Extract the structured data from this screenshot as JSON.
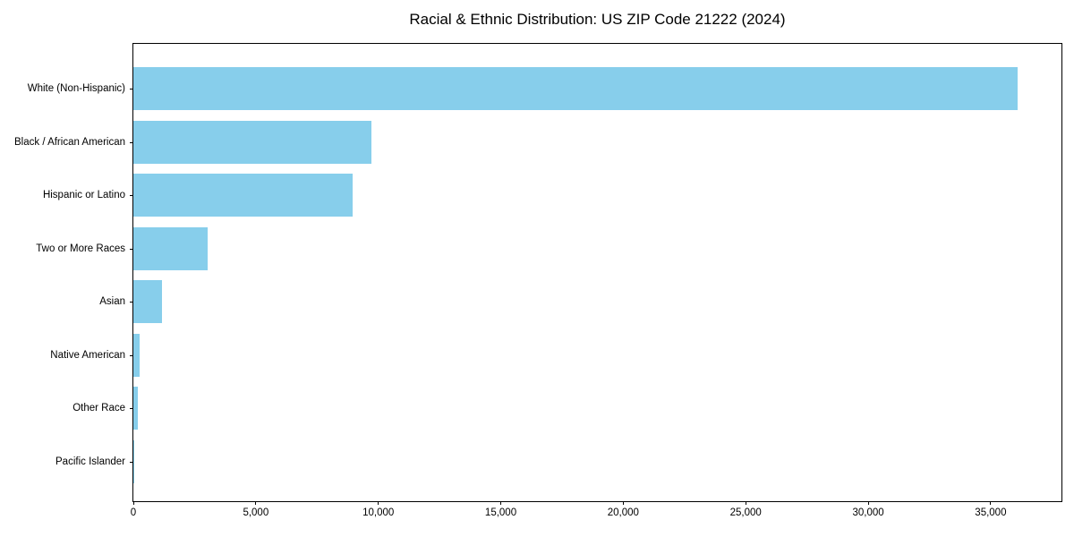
{
  "chart_data": {
    "type": "bar",
    "orientation": "horizontal",
    "title": "Racial & Ethnic Distribution: US ZIP Code 21222 (2024)",
    "categories": [
      "White (Non-Hispanic)",
      "Black / African American",
      "Hispanic or Latino",
      "Two or More Races",
      "Asian",
      "Native American",
      "Other Race",
      "Pacific Islander"
    ],
    "values": [
      36100,
      9720,
      8950,
      3030,
      1170,
      260,
      180,
      20
    ],
    "bar_color": "#87CEEB",
    "xlabel": "",
    "ylabel": "",
    "xlim": [
      0,
      37890
    ],
    "xticks": [
      0,
      5000,
      10000,
      15000,
      20000,
      25000,
      30000,
      35000
    ],
    "xtick_labels": [
      "0",
      "5,000",
      "10,000",
      "15,000",
      "20,000",
      "25,000",
      "30,000",
      "35,000"
    ],
    "grid": false,
    "legend": false
  }
}
